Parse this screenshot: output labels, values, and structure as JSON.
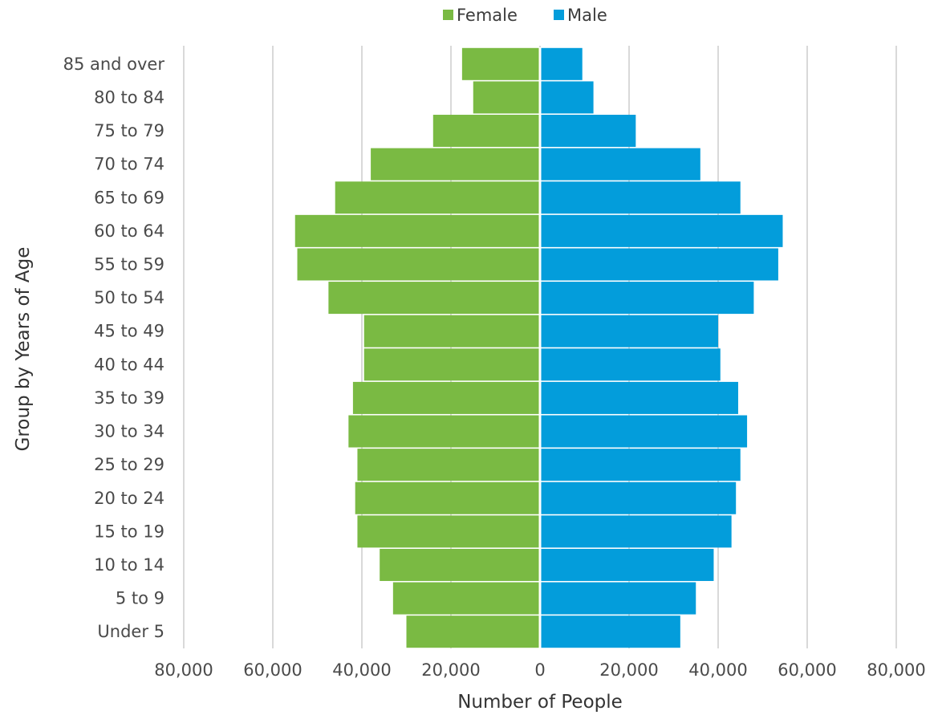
{
  "chart_data": {
    "type": "bar",
    "orientation": "horizontal",
    "title": "",
    "xlabel": "Number of People",
    "ylabel": "Group by Years of Age",
    "categories": [
      "85 and over",
      "80 to 84",
      "75 to 79",
      "70 to 74",
      "65 to 69",
      "60 to 64",
      "55 to 59",
      "50 to 54",
      "45 to 49",
      "40 to 44",
      "35 to 39",
      "30 to 34",
      "25 to 29",
      "20 to 24",
      "15 to 19",
      "10 to 14",
      "5 to 9",
      "Under 5"
    ],
    "series": [
      {
        "name": "Female",
        "color": "#7aba43",
        "values": [
          17500,
          15000,
          24000,
          38000,
          46000,
          55000,
          54500,
          47500,
          39500,
          39500,
          42000,
          43000,
          41000,
          41500,
          41000,
          36000,
          33000,
          30000
        ]
      },
      {
        "name": "Male",
        "color": "#039ddb",
        "values": [
          9500,
          12000,
          21500,
          36000,
          45000,
          54500,
          53500,
          48000,
          40000,
          40500,
          44500,
          46500,
          45000,
          44000,
          43000,
          39000,
          35000,
          31500
        ]
      }
    ],
    "xlim": [
      -80000,
      80000
    ],
    "xticks": [
      -80000,
      -60000,
      -40000,
      -20000,
      0,
      20000,
      40000,
      60000,
      80000
    ],
    "xtick_labels": [
      "80,000",
      "60,000",
      "40,000",
      "20,000",
      "0",
      "20,000",
      "40,000",
      "60,000",
      "80,000"
    ],
    "grid": true,
    "grid_color": "#d9d9d9",
    "legend_position": "top-center"
  }
}
